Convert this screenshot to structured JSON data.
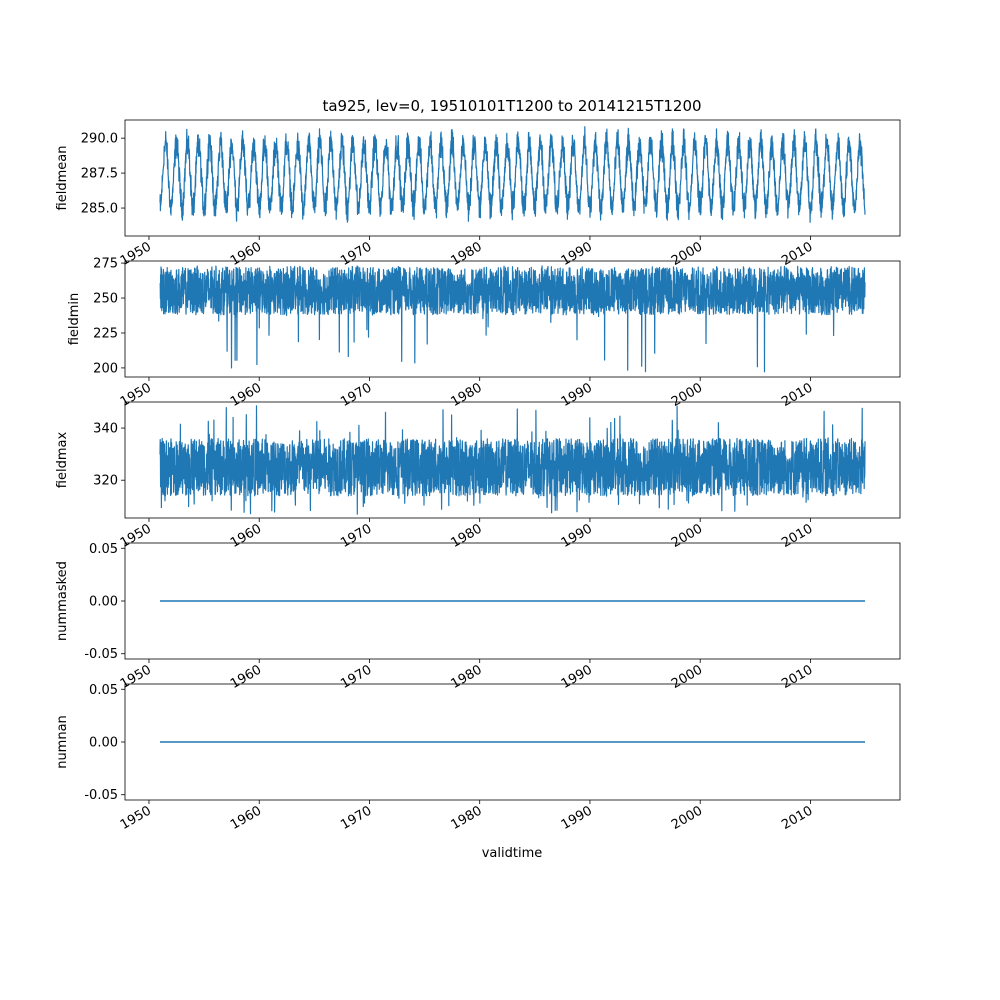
{
  "title": "ta925, lev=0, 19510101T1200 to 20141215T1200",
  "chart_data": {
    "type": "line",
    "title": "ta925, lev=0, 19510101T1200 to 20141215T1200",
    "xlabel": "validtime",
    "x_range": [
      "1951-01-01",
      "2014-12-15"
    ],
    "x_ticks": [
      "1950",
      "1960",
      "1970",
      "1980",
      "1990",
      "2000",
      "2010"
    ],
    "line_color": "#1f77b4",
    "panels": [
      {
        "ylabel": "fieldmean",
        "ylim": [
          283.0,
          291.3
        ],
        "y_ticks": [
          "285.0",
          "287.5",
          "290.0"
        ],
        "y_tick_values": [
          285.0,
          287.5,
          290.0
        ],
        "pattern": "seasonal",
        "annual_low_range": [
          284.3,
          285.8
        ],
        "annual_high_range": [
          288.8,
          290.5
        ],
        "overall_min": 283.2,
        "overall_max": 290.9
      },
      {
        "ylabel": "fieldmin",
        "ylim": [
          193.5,
          276.5
        ],
        "y_ticks": [
          "200",
          "225",
          "250",
          "275"
        ],
        "y_tick_values": [
          200,
          225,
          250,
          275
        ],
        "pattern": "noisy",
        "typical_range": [
          238,
          272
        ],
        "overall_min": 197,
        "overall_max": 273
      },
      {
        "ylabel": "fieldmax",
        "ylim": [
          305.5,
          350.0
        ],
        "y_ticks": [
          "320",
          "340"
        ],
        "y_tick_values": [
          320,
          340
        ],
        "pattern": "noisy",
        "typical_range": [
          314,
          336
        ],
        "overall_min": 307,
        "overall_max": 349
      },
      {
        "ylabel": "nummasked",
        "ylim": [
          -0.055,
          0.055
        ],
        "y_ticks": [
          "0.05",
          "0.00",
          "-0.05"
        ],
        "y_tick_values": [
          0.05,
          0.0,
          -0.05
        ],
        "pattern": "constant",
        "value": 0.0
      },
      {
        "ylabel": "numnan",
        "ylim": [
          -0.055,
          0.055
        ],
        "y_ticks": [
          "0.05",
          "0.00",
          "-0.05"
        ],
        "y_tick_values": [
          0.05,
          0.0,
          -0.05
        ],
        "pattern": "constant",
        "value": 0.0
      }
    ]
  }
}
